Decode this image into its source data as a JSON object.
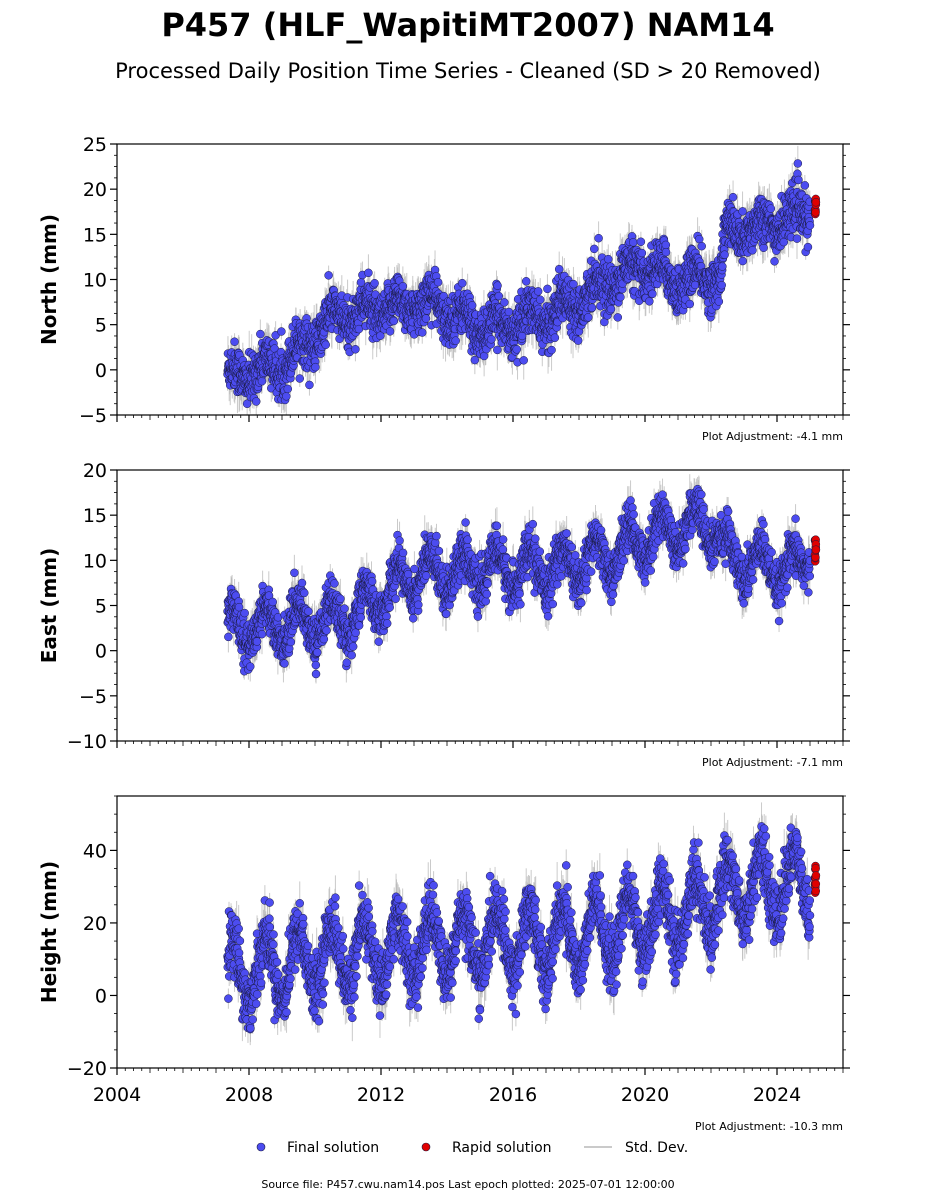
{
  "title": "P457 (HLF_WapitiMT2007) NAM14",
  "subtitle": "Processed Daily Position Time Series - Cleaned (SD > 20 Removed)",
  "source_text": "Source file: P457.cwu.nam14.pos  Last epoch plotted: 2025-07-01 12:00:00",
  "legend": {
    "final": "Final solution",
    "rapid": "Rapid solution",
    "std": "Std. Dev."
  },
  "colors": {
    "final": "#4c4cf0",
    "rapid": "#e00000",
    "std": "#b8b8b8",
    "marker_edge": "#1a1a40"
  },
  "chart_data": [
    {
      "type": "scatter",
      "ylabel": "North (mm)",
      "adjustment": "Plot Adjustment: -4.1 mm",
      "xlim": [
        2004,
        2026
      ],
      "ylim": [
        -5,
        25
      ],
      "yticks": [
        -5,
        0,
        5,
        10,
        15,
        20,
        25
      ],
      "xticks": [
        2004,
        2008,
        2012,
        2016,
        2020,
        2024
      ],
      "show_xtick_labels": false,
      "final_start": 2007.35,
      "final_end": 2025.0,
      "rapid_start": 2025.15,
      "rapid_end": 2025.5,
      "trend": [
        [
          2007.35,
          -0.8
        ],
        [
          2009.0,
          0.5
        ],
        [
          2010.6,
          5.8
        ],
        [
          2013.5,
          7.5
        ],
        [
          2015.0,
          4.6
        ],
        [
          2017.0,
          5.8
        ],
        [
          2019.0,
          10.0
        ],
        [
          2020.0,
          11.5
        ],
        [
          2021.0,
          9.8
        ],
        [
          2022.3,
          10.5
        ],
        [
          2022.45,
          15.0
        ],
        [
          2024.0,
          16.3
        ],
        [
          2025.0,
          17.5
        ],
        [
          2025.5,
          18.0
        ]
      ],
      "annual_amplitude": 1.2,
      "scatter": 1.3,
      "sd": 1.6
    },
    {
      "type": "scatter",
      "ylabel": "East (mm)",
      "adjustment": "Plot Adjustment: -7.1 mm",
      "xlim": [
        2004,
        2026
      ],
      "ylim": [
        -10,
        20
      ],
      "yticks": [
        -10,
        -5,
        0,
        5,
        10,
        15,
        20
      ],
      "xticks": [
        2004,
        2008,
        2012,
        2016,
        2020,
        2024
      ],
      "show_xtick_labels": false,
      "final_start": 2007.35,
      "final_end": 2025.0,
      "rapid_start": 2025.15,
      "rapid_end": 2025.5,
      "trend": [
        [
          2007.35,
          2.5
        ],
        [
          2009.0,
          3.0
        ],
        [
          2011.0,
          3.5
        ],
        [
          2013.0,
          8.5
        ],
        [
          2015.0,
          9.0
        ],
        [
          2017.0,
          8.8
        ],
        [
          2019.0,
          10.5
        ],
        [
          2020.0,
          12.5
        ],
        [
          2021.5,
          14.0
        ],
        [
          2022.2,
          13.5
        ],
        [
          2022.4,
          10.5
        ],
        [
          2024.5,
          8.5
        ],
        [
          2025.0,
          11.0
        ],
        [
          2025.5,
          11.5
        ]
      ],
      "annual_amplitude": 2.2,
      "scatter": 1.2,
      "sd": 1.5
    },
    {
      "type": "scatter",
      "ylabel": "Height (mm)",
      "adjustment": "Plot Adjustment: -10.3 mm",
      "xlim": [
        2004,
        2026
      ],
      "ylim": [
        -20,
        55
      ],
      "yticks": [
        -20,
        0,
        20,
        40
      ],
      "xticks": [
        2004,
        2008,
        2012,
        2016,
        2020,
        2024
      ],
      "xtick_labels": [
        "2004",
        "2008",
        "2012",
        "2016",
        "2020",
        "2024"
      ],
      "show_xtick_labels": true,
      "final_start": 2007.35,
      "final_end": 2025.0,
      "rapid_start": 2025.15,
      "rapid_end": 2025.5,
      "trend": [
        [
          2007.35,
          6.0
        ],
        [
          2010.0,
          10.0
        ],
        [
          2014.0,
          14.0
        ],
        [
          2018.0,
          16.0
        ],
        [
          2021.0,
          22.0
        ],
        [
          2023.0,
          30.0
        ],
        [
          2025.0,
          31.0
        ],
        [
          2025.5,
          32.0
        ]
      ],
      "annual_amplitude": 9.0,
      "scatter": 4.0,
      "sd": 4.5
    }
  ]
}
